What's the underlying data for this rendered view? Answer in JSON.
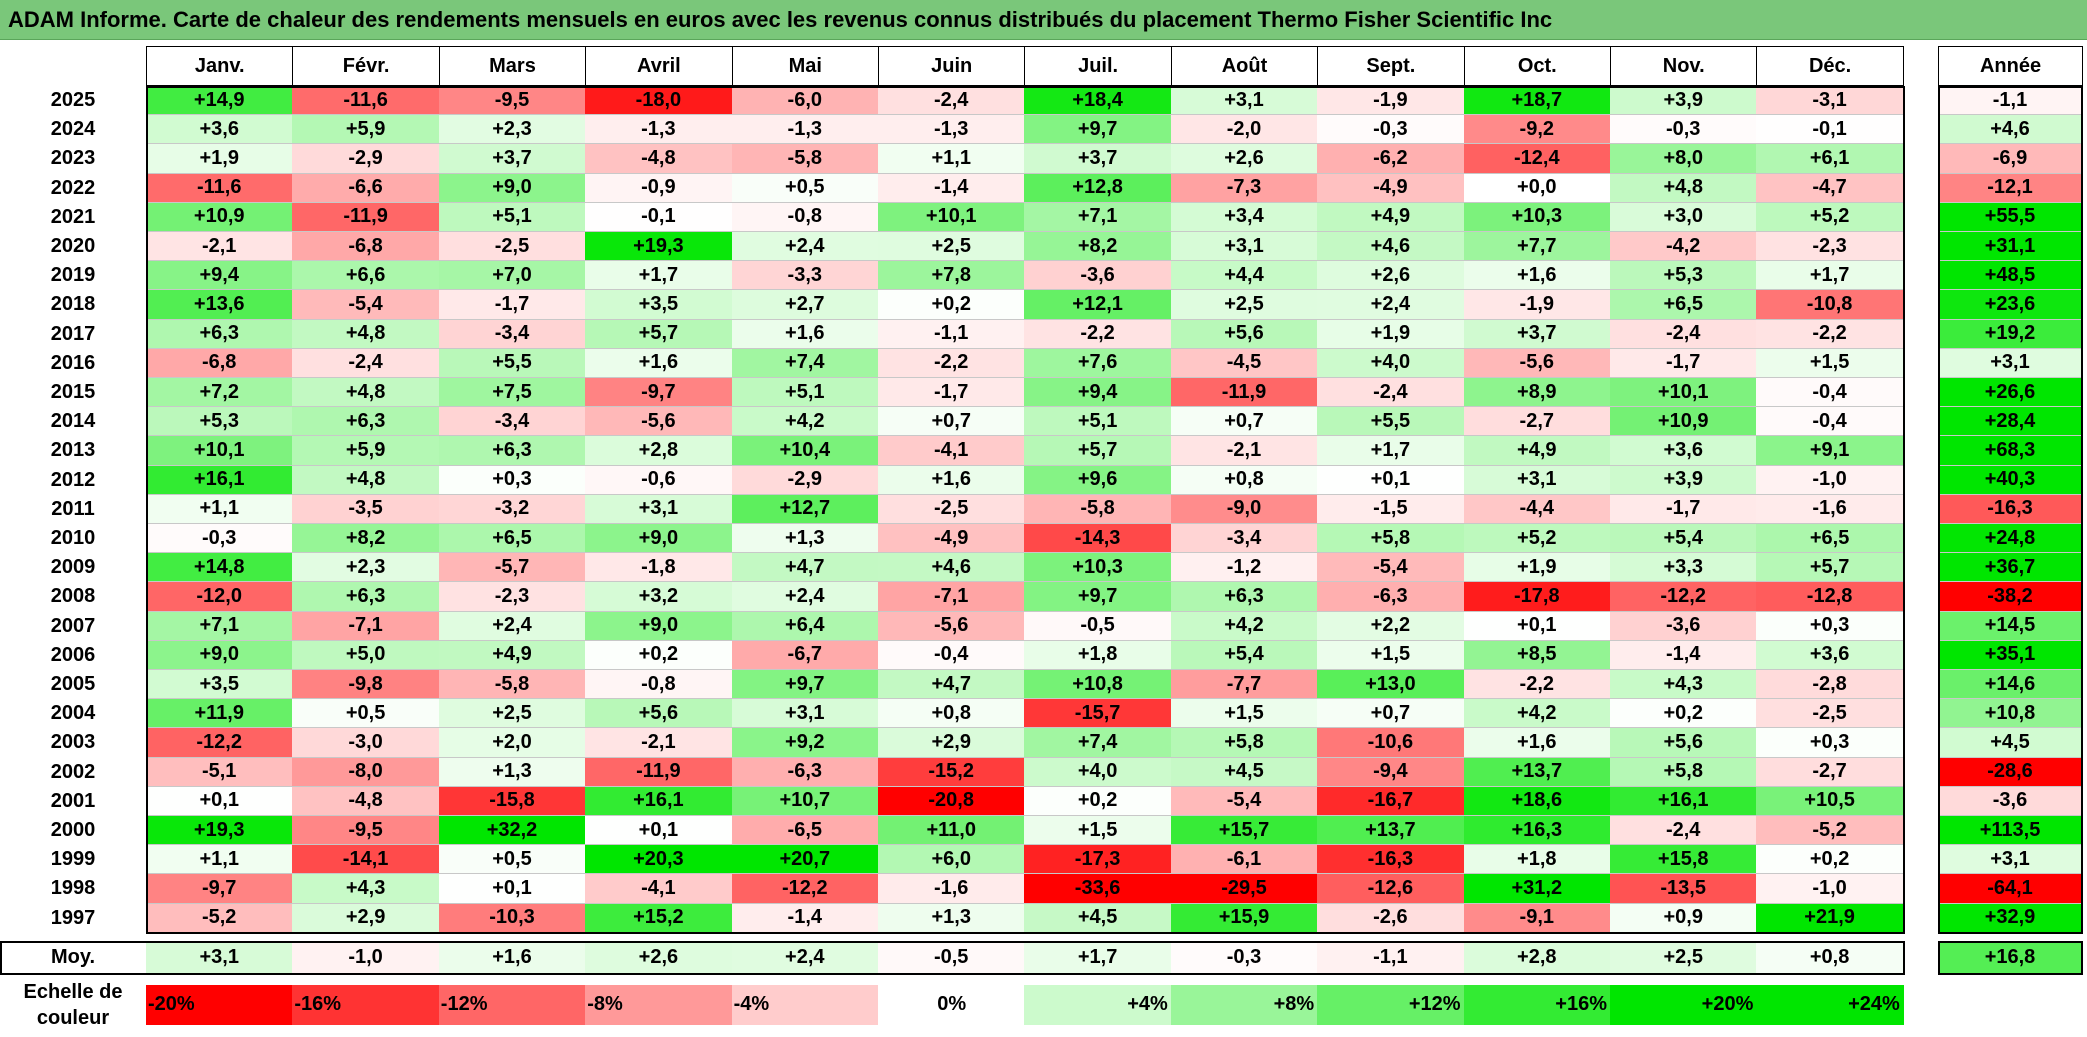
{
  "title": "ADAM Informe. Carte de chaleur des rendements mensuels en euros avec les revenus connus distribués du placement Thermo Fisher Scientific Inc",
  "chart_data": {
    "type": "heatmap",
    "columns": [
      "Janv.",
      "Févr.",
      "Mars",
      "Avril",
      "Mai",
      "Juin",
      "Juil.",
      "Août",
      "Sept.",
      "Oct.",
      "Nov.",
      "Déc."
    ],
    "year_column": "Année",
    "rows": [
      {
        "year": "2025",
        "values": [
          "+14,9",
          "-11,6",
          "-9,5",
          "-18,0",
          "-6,0",
          "-2,4",
          "+18,4",
          "+3,1",
          "-1,9",
          "+18,7",
          "+3,9",
          "-3,1"
        ],
        "annual": "-1,1"
      },
      {
        "year": "2024",
        "values": [
          "+3,6",
          "+5,9",
          "+2,3",
          "-1,3",
          "-1,3",
          "-1,3",
          "+9,7",
          "-2,0",
          "-0,3",
          "-9,2",
          "-0,3",
          "-0,1"
        ],
        "annual": "+4,6"
      },
      {
        "year": "2023",
        "values": [
          "+1,9",
          "-2,9",
          "+3,7",
          "-4,8",
          "-5,8",
          "+1,1",
          "+3,7",
          "+2,6",
          "-6,2",
          "-12,4",
          "+8,0",
          "+6,1"
        ],
        "annual": "-6,9"
      },
      {
        "year": "2022",
        "values": [
          "-11,6",
          "-6,6",
          "+9,0",
          "-0,9",
          "+0,5",
          "-1,4",
          "+12,8",
          "-7,3",
          "-4,9",
          "+0,0",
          "+4,8",
          "-4,7"
        ],
        "annual": "-12,1"
      },
      {
        "year": "2021",
        "values": [
          "+10,9",
          "-11,9",
          "+5,1",
          "-0,1",
          "-0,8",
          "+10,1",
          "+7,1",
          "+3,4",
          "+4,9",
          "+10,3",
          "+3,0",
          "+5,2"
        ],
        "annual": "+55,5"
      },
      {
        "year": "2020",
        "values": [
          "-2,1",
          "-6,8",
          "-2,5",
          "+19,3",
          "+2,4",
          "+2,5",
          "+8,2",
          "+3,1",
          "+4,6",
          "+7,7",
          "-4,2",
          "-2,3"
        ],
        "annual": "+31,1"
      },
      {
        "year": "2019",
        "values": [
          "+9,4",
          "+6,6",
          "+7,0",
          "+1,7",
          "-3,3",
          "+7,8",
          "-3,6",
          "+4,4",
          "+2,6",
          "+1,6",
          "+5,3",
          "+1,7"
        ],
        "annual": "+48,5"
      },
      {
        "year": "2018",
        "values": [
          "+13,6",
          "-5,4",
          "-1,7",
          "+3,5",
          "+2,7",
          "+0,2",
          "+12,1",
          "+2,5",
          "+2,4",
          "-1,9",
          "+6,5",
          "-10,8"
        ],
        "annual": "+23,6"
      },
      {
        "year": "2017",
        "values": [
          "+6,3",
          "+4,8",
          "-3,4",
          "+5,7",
          "+1,6",
          "-1,1",
          "-2,2",
          "+5,6",
          "+1,9",
          "+3,7",
          "-2,4",
          "-2,2"
        ],
        "annual": "+19,2"
      },
      {
        "year": "2016",
        "values": [
          "-6,8",
          "-2,4",
          "+5,5",
          "+1,6",
          "+7,4",
          "-2,2",
          "+7,6",
          "-4,5",
          "+4,0",
          "-5,6",
          "-1,7",
          "+1,5"
        ],
        "annual": "+3,1"
      },
      {
        "year": "2015",
        "values": [
          "+7,2",
          "+4,8",
          "+7,5",
          "-9,7",
          "+5,1",
          "-1,7",
          "+9,4",
          "-11,9",
          "-2,4",
          "+8,9",
          "+10,1",
          "-0,4"
        ],
        "annual": "+26,6"
      },
      {
        "year": "2014",
        "values": [
          "+5,3",
          "+6,3",
          "-3,4",
          "-5,6",
          "+4,2",
          "+0,7",
          "+5,1",
          "+0,7",
          "+5,5",
          "-2,7",
          "+10,9",
          "-0,4"
        ],
        "annual": "+28,4"
      },
      {
        "year": "2013",
        "values": [
          "+10,1",
          "+5,9",
          "+6,3",
          "+2,8",
          "+10,4",
          "-4,1",
          "+5,7",
          "-2,1",
          "+1,7",
          "+4,9",
          "+3,6",
          "+9,1"
        ],
        "annual": "+68,3"
      },
      {
        "year": "2012",
        "values": [
          "+16,1",
          "+4,8",
          "+0,3",
          "-0,6",
          "-2,9",
          "+1,6",
          "+9,6",
          "+0,8",
          "+0,1",
          "+3,1",
          "+3,9",
          "-1,0"
        ],
        "annual": "+40,3"
      },
      {
        "year": "2011",
        "values": [
          "+1,1",
          "-3,5",
          "-3,2",
          "+3,1",
          "+12,7",
          "-2,5",
          "-5,8",
          "-9,0",
          "-1,5",
          "-4,4",
          "-1,7",
          "-1,6"
        ],
        "annual": "-16,3"
      },
      {
        "year": "2010",
        "values": [
          "-0,3",
          "+8,2",
          "+6,5",
          "+9,0",
          "+1,3",
          "-4,9",
          "-14,3",
          "-3,4",
          "+5,8",
          "+5,2",
          "+5,4",
          "+6,5"
        ],
        "annual": "+24,8"
      },
      {
        "year": "2009",
        "values": [
          "+14,8",
          "+2,3",
          "-5,7",
          "-1,8",
          "+4,7",
          "+4,6",
          "+10,3",
          "-1,2",
          "-5,4",
          "+1,9",
          "+3,3",
          "+5,7"
        ],
        "annual": "+36,7"
      },
      {
        "year": "2008",
        "values": [
          "-12,0",
          "+6,3",
          "-2,3",
          "+3,2",
          "+2,4",
          "-7,1",
          "+9,7",
          "+6,3",
          "-6,3",
          "-17,8",
          "-12,2",
          "-12,8"
        ],
        "annual": "-38,2"
      },
      {
        "year": "2007",
        "values": [
          "+7,1",
          "-7,1",
          "+2,4",
          "+9,0",
          "+6,4",
          "-5,6",
          "-0,5",
          "+4,2",
          "+2,2",
          "+0,1",
          "-3,6",
          "+0,3"
        ],
        "annual": "+14,5"
      },
      {
        "year": "2006",
        "values": [
          "+9,0",
          "+5,0",
          "+4,9",
          "+0,2",
          "-6,7",
          "-0,4",
          "+1,8",
          "+5,4",
          "+1,5",
          "+8,5",
          "-1,4",
          "+3,6"
        ],
        "annual": "+35,1"
      },
      {
        "year": "2005",
        "values": [
          "+3,5",
          "-9,8",
          "-5,8",
          "-0,8",
          "+9,7",
          "+4,7",
          "+10,8",
          "-7,7",
          "+13,0",
          "-2,2",
          "+4,3",
          "-2,8"
        ],
        "annual": "+14,6"
      },
      {
        "year": "2004",
        "values": [
          "+11,9",
          "+0,5",
          "+2,5",
          "+5,6",
          "+3,1",
          "+0,8",
          "-15,7",
          "+1,5",
          "+0,7",
          "+4,2",
          "+0,2",
          "-2,5"
        ],
        "annual": "+10,8"
      },
      {
        "year": "2003",
        "values": [
          "-12,2",
          "-3,0",
          "+2,0",
          "-2,1",
          "+9,2",
          "+2,9",
          "+7,4",
          "+5,8",
          "-10,6",
          "+1,6",
          "+5,6",
          "+0,3"
        ],
        "annual": "+4,5"
      },
      {
        "year": "2002",
        "values": [
          "-5,1",
          "-8,0",
          "+1,3",
          "-11,9",
          "-6,3",
          "-15,2",
          "+4,0",
          "+4,5",
          "-9,4",
          "+13,7",
          "+5,8",
          "-2,7"
        ],
        "annual": "-28,6"
      },
      {
        "year": "2001",
        "values": [
          "+0,1",
          "-4,8",
          "-15,8",
          "+16,1",
          "+10,7",
          "-20,8",
          "+0,2",
          "-5,4",
          "-16,7",
          "+18,6",
          "+16,1",
          "+10,5"
        ],
        "annual": "-3,6"
      },
      {
        "year": "2000",
        "values": [
          "+19,3",
          "-9,5",
          "+32,2",
          "+0,1",
          "-6,5",
          "+11,0",
          "+1,5",
          "+15,7",
          "+13,7",
          "+16,3",
          "-2,4",
          "-5,2"
        ],
        "annual": "+113,5"
      },
      {
        "year": "1999",
        "values": [
          "+1,1",
          "-14,1",
          "+0,5",
          "+20,3",
          "+20,7",
          "+6,0",
          "-17,3",
          "-6,1",
          "-16,3",
          "+1,8",
          "+15,8",
          "+0,2"
        ],
        "annual": "+3,1"
      },
      {
        "year": "1998",
        "values": [
          "-9,7",
          "+4,3",
          "+0,1",
          "-4,1",
          "-12,2",
          "-1,6",
          "-33,6",
          "-29,5",
          "-12,6",
          "+31,2",
          "-13,5",
          "-1,0"
        ],
        "annual": "-64,1"
      },
      {
        "year": "1997",
        "values": [
          "-5,2",
          "+2,9",
          "-10,3",
          "+15,2",
          "-1,4",
          "+1,3",
          "+4,5",
          "+15,9",
          "-2,6",
          "-9,1",
          "+0,9",
          "+21,9"
        ],
        "annual": "+32,9"
      }
    ],
    "average_row": {
      "label": "Moy.",
      "values": [
        "+3,1",
        "-1,0",
        "+1,6",
        "+2,6",
        "+2,4",
        "-0,5",
        "+1,7",
        "-0,3",
        "-1,1",
        "+2,8",
        "+2,5",
        "+0,8"
      ],
      "annual": "+16,8"
    },
    "scale": {
      "label": "Echelle de couleur",
      "stops": [
        "-20%",
        "-16%",
        "-12%",
        "-8%",
        "-4%",
        "0%",
        "+4%",
        "+8%",
        "+12%",
        "+16%",
        "+20%",
        "+24%"
      ],
      "stop_values": [
        -20,
        -16,
        -12,
        -8,
        -4,
        0,
        4,
        8,
        12,
        16,
        20,
        24
      ]
    },
    "colors": {
      "negative_max": "#ff0000",
      "neutral": "#ffffff",
      "positive_max": "#00e000",
      "title_bar": "#7ac77a"
    }
  }
}
